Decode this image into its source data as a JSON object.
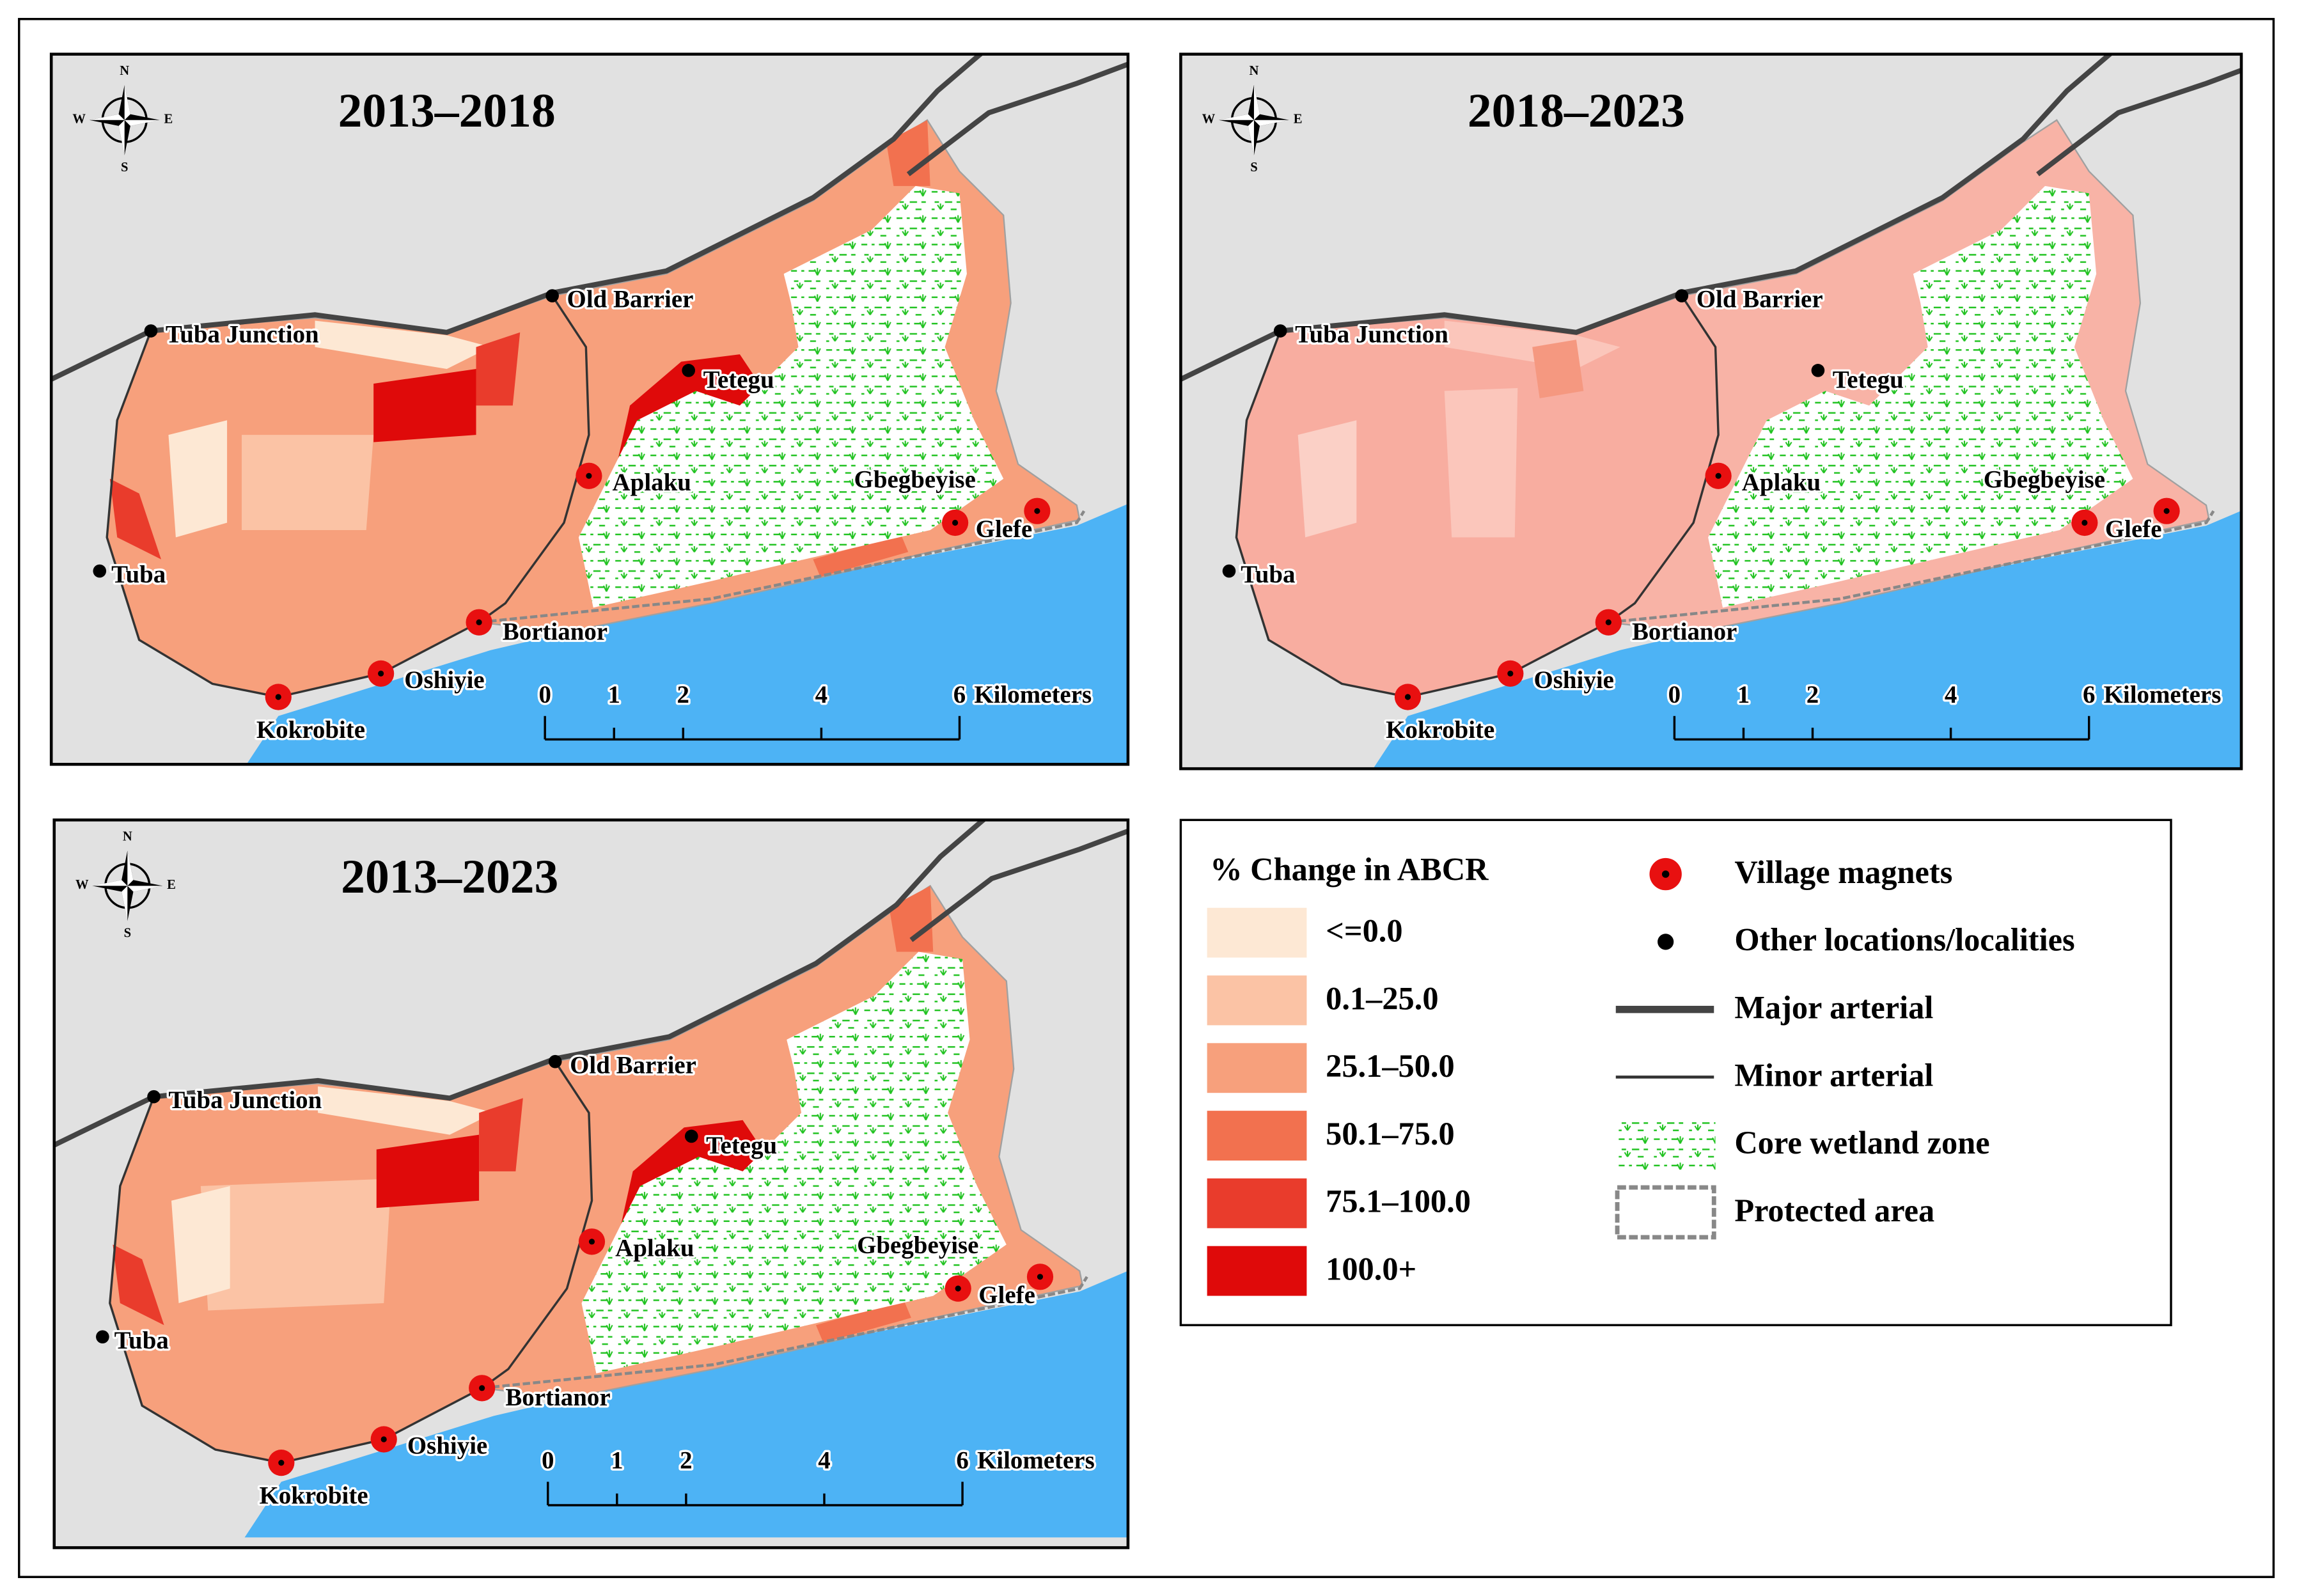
{
  "maps": [
    {
      "title": "2013–2018"
    },
    {
      "title": "2018–2023"
    },
    {
      "title": "2013–2023"
    }
  ],
  "places": [
    "Tuba Junction",
    "Old Barrier",
    "Tetegu",
    "Aplaku",
    "Gbegbeyise",
    "Glefe",
    "Tuba",
    "Bortianor",
    "Oshiyie",
    "Kokrobite"
  ],
  "compass": {
    "n": "N",
    "e": "E",
    "s": "S",
    "w": "W"
  },
  "scale_bar": {
    "ticks": [
      0,
      1,
      2,
      4,
      6
    ],
    "unit": "Kilometers"
  },
  "legend": {
    "title": "% Change in ABCR",
    "classes": [
      {
        "label": "<=0.0",
        "color": "#fde8d4"
      },
      {
        "label": "0.1–25.0",
        "color": "#fbc3a5"
      },
      {
        "label": "25.1–50.0",
        "color": "#f7a07c"
      },
      {
        "label": "50.1–75.0",
        "color": "#f2714f"
      },
      {
        "label": "75.1–100.0",
        "color": "#e93c2c"
      },
      {
        "label": "100.0+",
        "color": "#df0a0a"
      }
    ],
    "symbols": [
      "Village magnets",
      "Other locations/localities",
      "Major arterial",
      "Minor arterial",
      "Core wetland zone",
      "Protected area"
    ]
  }
}
